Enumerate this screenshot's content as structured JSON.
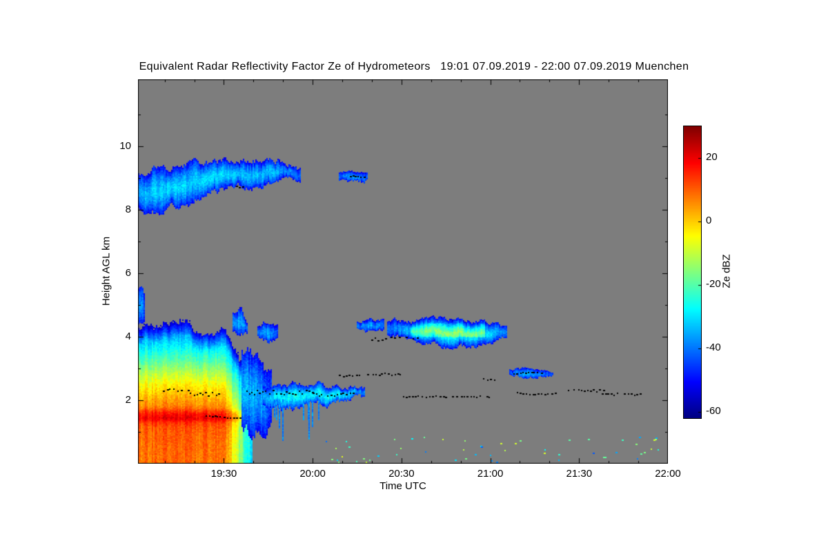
{
  "colors": {
    "page_bg": "#ffffff",
    "plot_bg": "#7d7d7d",
    "axis": "#000000",
    "dots": "#000000"
  },
  "chart_data": {
    "type": "heatmap",
    "title": "Equivalent Radar Reflectivity Factor Ze of Hydrometeors   19:01 07.09.2019 - 22:00 07.09.2019 Muenchen",
    "xlabel": "Time UTC",
    "ylabel": "Height AGL km",
    "colorbar_label": "Ze dBZ",
    "station": "Muenchen",
    "time_start": "19:01 07.09.2019",
    "time_end": "22:00 07.09.2019",
    "x_range_hours": [
      19.0167,
      22.0
    ],
    "y_range_km": [
      0,
      12.1
    ],
    "dbz_range": [
      -62,
      30
    ],
    "grid": false,
    "legend_position": "right-colorbar",
    "x_ticks": [
      {
        "value": 19.5,
        "label": "19:30"
      },
      {
        "value": 20.0,
        "label": "20:00"
      },
      {
        "value": 20.5,
        "label": "20:30"
      },
      {
        "value": 21.0,
        "label": "21:00"
      },
      {
        "value": 21.5,
        "label": "21:30"
      },
      {
        "value": 22.0,
        "label": "22:00"
      }
    ],
    "y_ticks": [
      {
        "value": 2,
        "label": "2"
      },
      {
        "value": 4,
        "label": "4"
      },
      {
        "value": 6,
        "label": "6"
      },
      {
        "value": 8,
        "label": "8"
      },
      {
        "value": 10,
        "label": "10"
      }
    ],
    "colorbar_ticks": [
      {
        "value": 20,
        "label": "20"
      },
      {
        "value": 0,
        "label": "0"
      },
      {
        "value": -20,
        "label": "-20"
      },
      {
        "value": -40,
        "label": "-40"
      },
      {
        "value": -60,
        "label": "-60"
      }
    ],
    "features": [
      {
        "id": "precip-main",
        "type": "precip",
        "t0": 19.017,
        "t1": 19.66,
        "fade_start": 19.5,
        "fade_slope": 260,
        "top_keypoints": [
          [
            19.017,
            4.35
          ],
          [
            19.12,
            4.25
          ],
          [
            19.22,
            4.45
          ],
          [
            19.32,
            4.25
          ],
          [
            19.42,
            3.95
          ],
          [
            19.5,
            4.25
          ],
          [
            19.56,
            3.7
          ],
          [
            19.62,
            3.0
          ],
          [
            19.66,
            2.3
          ]
        ],
        "profile": [
          [
            0,
            8
          ],
          [
            0.6,
            9
          ],
          [
            1.1,
            10
          ],
          [
            1.3,
            13
          ],
          [
            1.45,
            20
          ],
          [
            1.6,
            16
          ],
          [
            1.8,
            7
          ],
          [
            2.1,
            2
          ],
          [
            2.5,
            -4
          ],
          [
            2.9,
            -12
          ],
          [
            3.3,
            -21
          ],
          [
            3.7,
            -29
          ],
          [
            4.0,
            -35
          ],
          [
            4.5,
            -44
          ]
        ]
      },
      {
        "id": "virga-edge",
        "type": "cloud",
        "ragged": 0.35,
        "edge_dbz": -50,
        "keypoints": [
          [
            19.6,
            1.3,
            3.5,
            -36
          ],
          [
            19.65,
            0.95,
            3.4,
            -34
          ],
          [
            19.71,
            1.1,
            3.0,
            -36
          ],
          [
            19.77,
            1.5,
            2.6,
            -42
          ]
        ]
      },
      {
        "id": "edge-spike",
        "type": "cloud",
        "ragged": 0.15,
        "edge_dbz": -50,
        "keypoints": [
          [
            19.55,
            4.1,
            4.7,
            -38
          ],
          [
            19.59,
            4.2,
            4.9,
            -35
          ],
          [
            19.63,
            4.1,
            4.5,
            -42
          ]
        ]
      },
      {
        "id": "left-sliver",
        "type": "cloud",
        "ragged": 0.1,
        "edge_dbz": -50,
        "keypoints": [
          [
            19.017,
            4.45,
            5.5,
            -40
          ],
          [
            19.035,
            4.4,
            5.55,
            -38
          ],
          [
            19.055,
            4.5,
            5.2,
            -44
          ]
        ]
      },
      {
        "id": "upper-cloud-main",
        "type": "cloud",
        "ragged": 0.18,
        "edge_dbz": -50,
        "keypoints": [
          [
            19.017,
            8.15,
            9.05,
            -36
          ],
          [
            19.1,
            7.95,
            9.35,
            -32
          ],
          [
            19.22,
            8.05,
            9.3,
            -31
          ],
          [
            19.35,
            8.35,
            9.4,
            -33
          ],
          [
            19.48,
            8.65,
            9.5,
            -31
          ],
          [
            19.62,
            8.8,
            9.55,
            -33
          ],
          [
            19.75,
            8.85,
            9.55,
            -34
          ],
          [
            19.86,
            8.9,
            9.45,
            -37
          ],
          [
            19.93,
            9.0,
            9.2,
            -43
          ]
        ]
      },
      {
        "id": "upper-cloud-patch",
        "type": "cloud",
        "ragged": 0.08,
        "edge_dbz": -50,
        "keypoints": [
          [
            20.15,
            8.95,
            9.18,
            -42
          ],
          [
            20.22,
            8.88,
            9.22,
            -36
          ],
          [
            20.31,
            8.93,
            9.15,
            -43
          ]
        ]
      },
      {
        "id": "patch-4km",
        "type": "cloud",
        "ragged": 0.12,
        "edge_dbz": -50,
        "keypoints": [
          [
            19.69,
            4.0,
            4.35,
            -40
          ],
          [
            19.74,
            3.85,
            4.45,
            -35
          ],
          [
            19.8,
            3.95,
            4.3,
            -42
          ]
        ]
      },
      {
        "id": "low-cloud-band",
        "type": "cloud",
        "ragged": 0.15,
        "edge_dbz": -48,
        "keypoints": [
          [
            19.72,
            1.9,
            2.4,
            -34
          ],
          [
            19.8,
            1.7,
            2.45,
            -29
          ],
          [
            19.9,
            1.8,
            2.5,
            -27
          ],
          [
            20.0,
            1.9,
            2.52,
            -29
          ],
          [
            20.1,
            1.9,
            2.45,
            -27
          ],
          [
            20.2,
            2.0,
            2.4,
            -31
          ],
          [
            20.29,
            2.05,
            2.3,
            -40
          ]
        ]
      },
      {
        "id": "low-streaks",
        "type": "streaks",
        "t0": 19.78,
        "t1": 20.08,
        "h_top": 2.0,
        "h_bot_min": 0.7,
        "h_bot_max": 1.6,
        "count": 9,
        "dbz": -38
      },
      {
        "id": "mid-cloud-lead",
        "type": "cloud",
        "ragged": 0.1,
        "edge_dbz": -50,
        "keypoints": [
          [
            20.25,
            4.25,
            4.5,
            -40
          ],
          [
            20.32,
            4.12,
            4.55,
            -35
          ],
          [
            20.4,
            4.2,
            4.5,
            -42
          ]
        ]
      },
      {
        "id": "mid-cloud-main",
        "type": "cloud",
        "ragged": 0.12,
        "edge_dbz": -50,
        "core_boost": {
          "t0": 20.55,
          "t1": 20.97,
          "h0": 4.0,
          "h1": 4.45,
          "boost": 12
        },
        "keypoints": [
          [
            20.42,
            4.1,
            4.45,
            -40
          ],
          [
            20.52,
            3.95,
            4.5,
            -34
          ],
          [
            20.62,
            3.8,
            4.55,
            -29
          ],
          [
            20.72,
            3.72,
            4.6,
            -26
          ],
          [
            20.82,
            3.7,
            4.55,
            -25
          ],
          [
            20.92,
            3.75,
            4.5,
            -27
          ],
          [
            21.02,
            3.85,
            4.45,
            -33
          ],
          [
            21.09,
            4.0,
            4.3,
            -42
          ]
        ]
      },
      {
        "id": "cloud-3km",
        "type": "cloud",
        "ragged": 0.08,
        "edge_dbz": -48,
        "keypoints": [
          [
            21.11,
            2.8,
            2.97,
            -42
          ],
          [
            21.19,
            2.73,
            3.0,
            -34
          ],
          [
            21.28,
            2.77,
            2.97,
            -38
          ],
          [
            21.35,
            2.8,
            2.9,
            -45
          ]
        ]
      }
    ],
    "dot_segments": [
      {
        "t0": 19.16,
        "t1": 19.31,
        "h": 2.33,
        "jitter": 0.06
      },
      {
        "t0": 19.31,
        "t1": 19.47,
        "h": 2.2,
        "jitter": 0.07
      },
      {
        "t0": 19.4,
        "t1": 19.59,
        "h": 1.47,
        "jitter": 0.04
      },
      {
        "t0": 19.57,
        "t1": 19.61,
        "h": 8.72,
        "jitter": 0.03
      },
      {
        "t0": 20.21,
        "t1": 20.29,
        "h": 9.05,
        "jitter": 0.03
      },
      {
        "t0": 19.63,
        "t1": 20.0,
        "h": 2.25,
        "jitter": 0.07
      },
      {
        "t0": 20.0,
        "t1": 20.23,
        "h": 2.18,
        "jitter": 0.05
      },
      {
        "t0": 20.15,
        "t1": 20.27,
        "h": 2.77,
        "jitter": 0.03
      },
      {
        "t0": 20.31,
        "t1": 20.51,
        "h": 2.82,
        "jitter": 0.03
      },
      {
        "t0": 20.33,
        "t1": 20.42,
        "h": 3.92,
        "jitter": 0.04
      },
      {
        "t0": 20.44,
        "t1": 20.59,
        "h": 3.98,
        "jitter": 0.04
      },
      {
        "t0": 20.51,
        "t1": 21.0,
        "h": 2.12,
        "jitter": 0.02
      },
      {
        "t0": 20.96,
        "t1": 21.03,
        "h": 2.65,
        "jitter": 0.03
      },
      {
        "t0": 21.13,
        "t1": 21.31,
        "h": 2.86,
        "jitter": 0.03
      },
      {
        "t0": 21.15,
        "t1": 21.38,
        "h": 2.22,
        "jitter": 0.04
      },
      {
        "t0": 21.42,
        "t1": 21.64,
        "h": 2.3,
        "jitter": 0.04
      },
      {
        "t0": 21.63,
        "t1": 21.87,
        "h": 2.2,
        "jitter": 0.04
      }
    ],
    "speckles": {
      "t0": 20.05,
      "t1": 21.95,
      "h0": 0.05,
      "h1": 0.85,
      "count": 55,
      "dbz_min": -44,
      "dbz_max": -6
    }
  }
}
